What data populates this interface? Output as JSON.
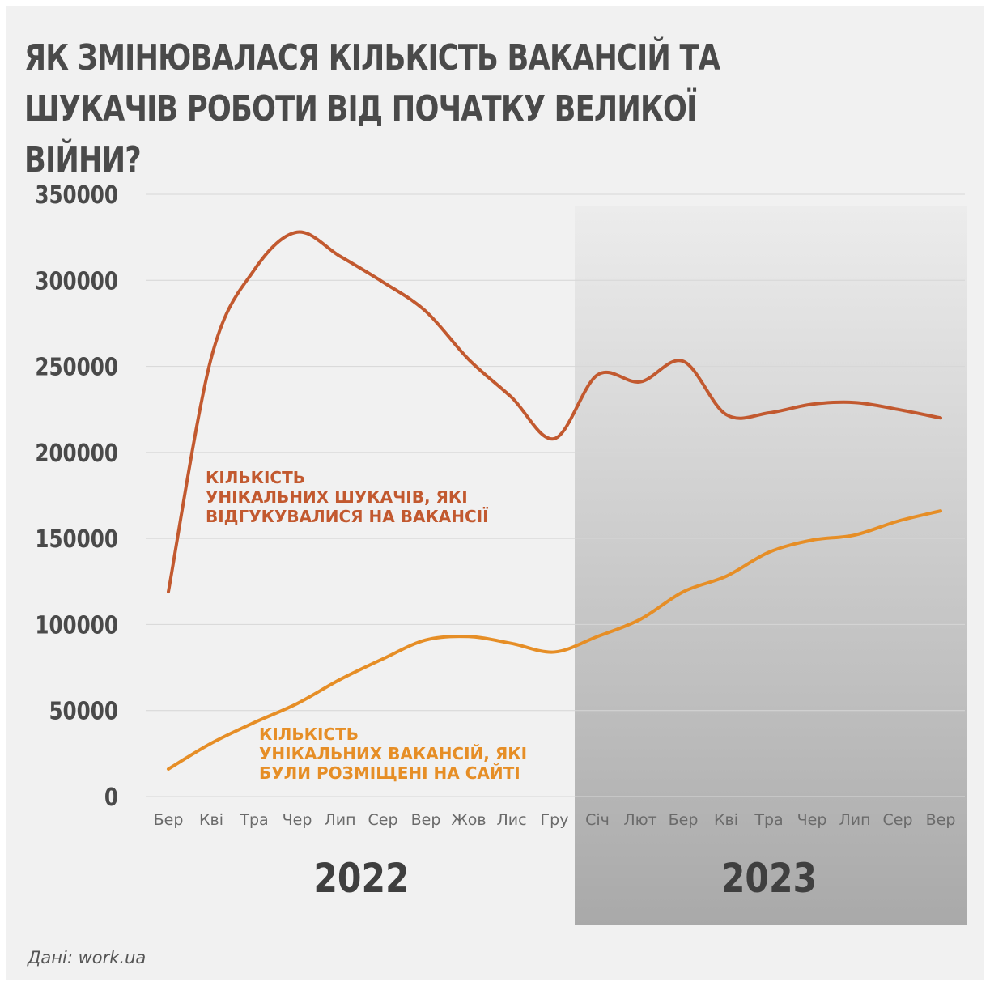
{
  "title": "ЯК ЗМІНЮВАЛАСЯ КІЛЬКІСТЬ ВАКАНСІЙ ТА ШУКАЧІВ РОБОТИ ВІД ПОЧАТКУ ВЕЛИКОЇ ВІЙНИ?",
  "source": "Дані: work.ua",
  "colors": {
    "seekers": "#c2592f",
    "vacancies": "#e68e26",
    "text": "#4a4a4a",
    "grid": "#d6d6d6"
  },
  "chart_data": {
    "type": "line",
    "title": "ЯК ЗМІНЮВАЛАСЯ КІЛЬКІСТЬ ВАКАНСІЙ ТА ШУКАЧІВ РОБОТИ ВІД ПОЧАТКУ ВЕЛИКОЇ ВІЙНИ?",
    "categories": [
      "Бер",
      "Кві",
      "Тра",
      "Чер",
      "Лип",
      "Сер",
      "Вер",
      "Жов",
      "Лис",
      "Гру",
      "Січ",
      "Лют",
      "Бер",
      "Кві",
      "Тра",
      "Чер",
      "Лип",
      "Сер",
      "Вер"
    ],
    "years": [
      {
        "label": "2022",
        "from": 0,
        "to": 9
      },
      {
        "label": "2023",
        "from": 10,
        "to": 18
      }
    ],
    "yticks": [
      0,
      50000,
      100000,
      150000,
      200000,
      250000,
      300000,
      350000
    ],
    "yticks_labels": [
      "0",
      "50000",
      "100000",
      "150000",
      "200000",
      "250000",
      "300000",
      "350000"
    ],
    "ylim": [
      0,
      350000
    ],
    "grid": true,
    "series": [
      {
        "name": "КІЛЬКІСТЬ УНІКАЛЬНИХ ШУКАЧІВ, ЯКІ ВІДГУКУВАЛИСЯ НА ВАКАНСІЇ",
        "label_lines": [
          "КІЛЬКІСТЬ",
          "УНІКАЛЬНИХ ШУКАЧІВ, ЯКІ",
          "ВІДГУКУВАЛИСЯ НА ВАКАНСІЇ"
        ],
        "color": "#c2592f",
        "values": [
          119000,
          255000,
          306000,
          328000,
          314000,
          299000,
          282000,
          254000,
          232000,
          208000,
          245000,
          241000,
          253000,
          222000,
          223000,
          228000,
          229000,
          225000,
          220000
        ]
      },
      {
        "name": "КІЛЬКІСТЬ УНІКАЛЬНИХ ВАКАНСІЙ, ЯКІ БУЛИ РОЗМІЩЕНІ НА САЙТІ",
        "label_lines": [
          "КІЛЬКІСТЬ",
          "УНІКАЛЬНИХ ВАКАНСІЙ, ЯКІ",
          "БУЛИ РОЗМІЩЕНІ НА САЙТІ"
        ],
        "color": "#e68e26",
        "values": [
          16000,
          31000,
          43000,
          54000,
          68000,
          80000,
          91000,
          93000,
          89000,
          84000,
          93000,
          103000,
          119000,
          128000,
          142000,
          149000,
          152000,
          160000,
          166000
        ]
      }
    ]
  }
}
